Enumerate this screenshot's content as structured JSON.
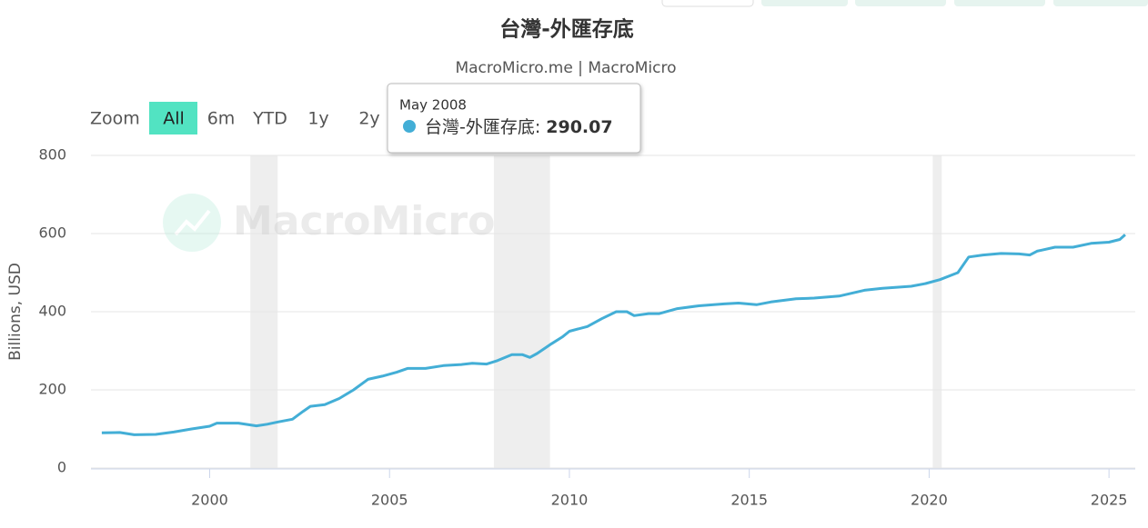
{
  "chart_data": {
    "type": "line",
    "title": "台灣-外匯存底",
    "subtitle": "MacroMicro.me | MacroMicro",
    "watermark": "MacroMicro",
    "y_label": "Billions, USD",
    "zoom": {
      "label": "Zoom",
      "buttons": [
        "All",
        "6m",
        "YTD",
        "1y",
        "2y"
      ]
    },
    "tooltip": {
      "date": "May 2008",
      "label": "台灣-外匯存底:",
      "value": 290.07
    },
    "xlim": [
      1996.7,
      2025.73
    ],
    "xticks": [
      2000,
      2005,
      2010,
      2015,
      2020,
      2025
    ],
    "ylim": [
      0,
      800
    ],
    "yticks": [
      0,
      200,
      400,
      600,
      800
    ],
    "grid": true,
    "shaded_periods": [
      [
        2001.13,
        2001.89
      ],
      [
        2007.9,
        2009.46
      ],
      [
        2020.1,
        2020.35
      ]
    ],
    "series": [
      {
        "name": "台灣-外匯存底",
        "color": "#43aed6",
        "x": [
          1997.0,
          1997.5,
          1997.9,
          1998.5,
          1999.0,
          1999.5,
          2000.0,
          2000.2,
          2000.8,
          2001.3,
          2001.6,
          2001.9,
          2002.3,
          2002.6,
          2002.8,
          2003.2,
          2003.6,
          2004.0,
          2004.4,
          2004.8,
          2005.2,
          2005.5,
          2006.0,
          2006.5,
          2007.0,
          2007.3,
          2007.7,
          2008.0,
          2008.4,
          2008.7,
          2008.9,
          2009.1,
          2009.5,
          2009.8,
          2010.0,
          2010.5,
          2010.9,
          2011.3,
          2011.6,
          2011.8,
          2012.2,
          2012.5,
          2013.0,
          2013.6,
          2014.3,
          2014.7,
          2015.2,
          2015.6,
          2016.3,
          2016.8,
          2017.5,
          2018.2,
          2018.7,
          2019.5,
          2019.9,
          2020.3,
          2020.8,
          2021.1,
          2021.5,
          2022.0,
          2022.5,
          2022.8,
          2023.0,
          2023.5,
          2024.0,
          2024.5,
          2025.0,
          2025.3,
          2025.45
        ],
        "values": [
          90,
          91,
          85,
          86,
          92,
          100,
          107,
          115,
          115,
          108,
          112,
          118,
          125,
          145,
          158,
          162,
          178,
          200,
          227,
          235,
          245,
          255,
          255,
          262,
          265,
          268,
          266,
          275,
          290,
          290,
          283,
          293,
          318,
          335,
          350,
          362,
          382,
          400,
          400,
          390,
          395,
          395,
          408,
          415,
          420,
          422,
          418,
          425,
          433,
          435,
          440,
          455,
          460,
          465,
          472,
          482,
          500,
          540,
          545,
          549,
          548,
          545,
          555,
          565,
          565,
          575,
          578,
          585,
          597
        ]
      }
    ]
  }
}
